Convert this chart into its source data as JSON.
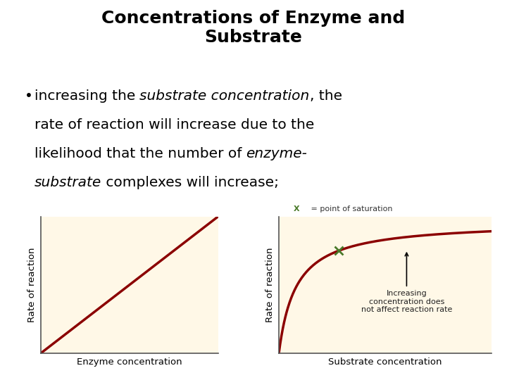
{
  "title_line1": "Concentrations of Enzyme and",
  "title_line2": "Substrate",
  "title_fontsize": 18,
  "title_fontweight": "bold",
  "bg_color": "#FFFFFF",
  "plot_bg_color": "#FFF8E7",
  "line_color": "#8B0000",
  "line_width": 2.5,
  "xlabel1": "Enzyme concentration",
  "xlabel2": "Substrate concentration",
  "ylabel": "Rate of reaction",
  "axis_label_fontsize": 9.5,
  "saturation_label_x": "X",
  "saturation_label_rest": " = point of saturation",
  "saturation_label_fontsize": 8,
  "saturation_marker_color": "#4A7A2A",
  "annotation_text": "Increasing\nconcentration does\nnot affect reaction rate",
  "annotation_fontsize": 8,
  "bullet_fontsize": 14.5
}
